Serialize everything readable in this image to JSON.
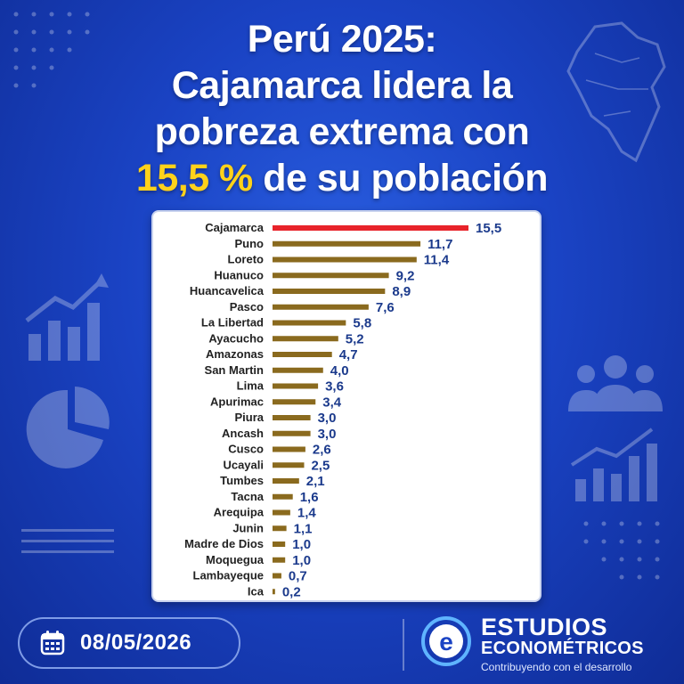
{
  "header": {
    "line1": "Perú 2025:",
    "line2": "Cajamarca lidera la",
    "line3": "pobreza extrema con",
    "line4_highlight": "15,5 %",
    "line4_rest": " de su población"
  },
  "chart_data": {
    "type": "bar",
    "orientation": "horizontal",
    "categories": [
      "Cajamarca",
      "Puno",
      "Loreto",
      "Huanuco",
      "Huancavelica",
      "Pasco",
      "La Libertad",
      "Ayacucho",
      "Amazonas",
      "San Martin",
      "Lima",
      "Apurimac",
      "Piura",
      "Ancash",
      "Cusco",
      "Ucayali",
      "Tumbes",
      "Tacna",
      "Arequipa",
      "Junin",
      "Madre de Dios",
      "Moquegua",
      "Lambayeque",
      "Ica"
    ],
    "values": [
      15.5,
      11.7,
      11.4,
      9.2,
      8.9,
      7.6,
      5.8,
      5.2,
      4.7,
      4.0,
      3.6,
      3.4,
      3.0,
      3.0,
      2.6,
      2.5,
      2.1,
      1.6,
      1.4,
      1.1,
      1.0,
      1.0,
      0.7,
      0.2
    ],
    "value_labels": [
      "15,5",
      "11,7",
      "11,4",
      "9,2",
      "8,9",
      "7,6",
      "5,8",
      "5,2",
      "4,7",
      "4,0",
      "3,6",
      "3,4",
      "3,0",
      "3,0",
      "2,6",
      "2,5",
      "2,1",
      "1,6",
      "1,4",
      "1,1",
      "1,0",
      "1,0",
      "0,7",
      "0,2"
    ],
    "title": "",
    "xlabel": "",
    "ylabel": "",
    "xlim": [
      0,
      15.5
    ],
    "grid": false,
    "colors": {
      "highlight": "#e8232a",
      "bar": "#8a6a1e",
      "label": "#1b3a8c",
      "category": "#222222"
    }
  },
  "footer": {
    "date": "08/05/2026",
    "brand_line1": "ESTUDIOS",
    "brand_line2": "ECONOMÉTRICOS",
    "slogan": "Contribuyendo con el desarrollo"
  }
}
